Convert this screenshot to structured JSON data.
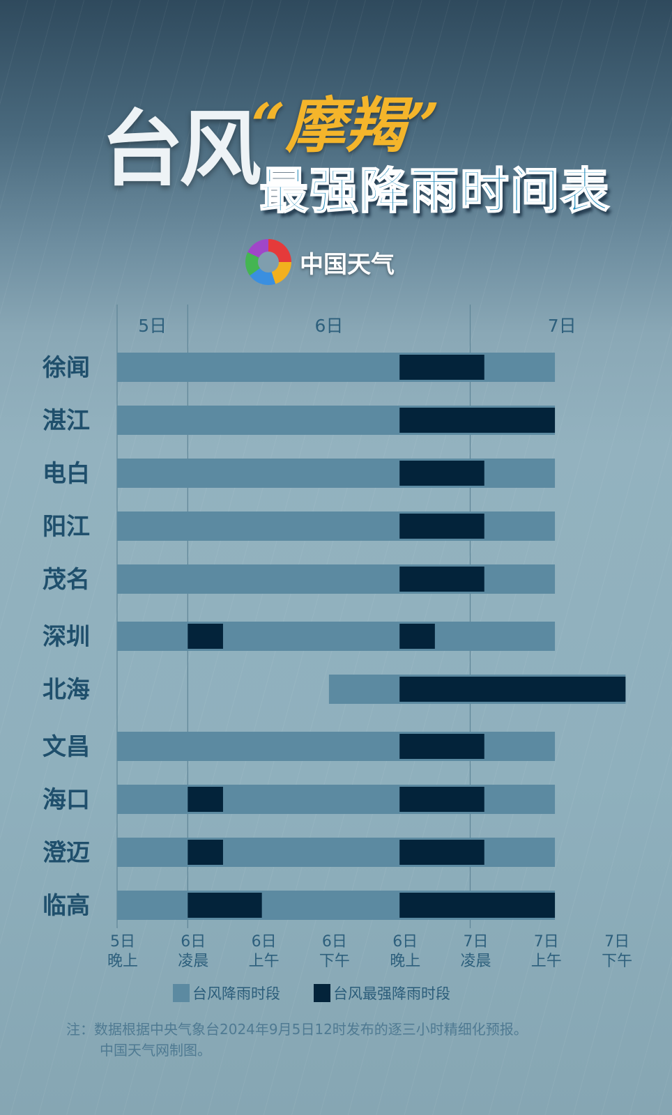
{
  "header": {
    "title_part1": "台风",
    "title_name": "“摩羯”",
    "title_part2": "最强降雨时间表",
    "logo_text": "中国天气"
  },
  "chart_data": {
    "type": "gantt",
    "title": "台风“摩羯”最强降雨时间表",
    "day_labels": [
      {
        "label": "5日",
        "at": 0.5
      },
      {
        "label": "6日",
        "at": 3.0
      },
      {
        "label": "7日",
        "at": 6.3
      }
    ],
    "day_dividers": [
      0,
      1,
      5
    ],
    "ticks": [
      {
        "day": "5日",
        "period": "晚上"
      },
      {
        "day": "6日",
        "period": "凌晨"
      },
      {
        "day": "6日",
        "period": "上午"
      },
      {
        "day": "6日",
        "period": "下午"
      },
      {
        "day": "6日",
        "period": "晚上"
      },
      {
        "day": "7日",
        "period": "凌晨"
      },
      {
        "day": "7日",
        "period": "上午"
      },
      {
        "day": "7日",
        "period": "下午"
      }
    ],
    "x_unit_note": "tick index positions (0 = 5日晚上 … 7 = 7日下午)",
    "xlim": [
      0,
      7.2
    ],
    "series": [
      {
        "name": "台风降雨时段",
        "color": "#5c8aa1"
      },
      {
        "name": "台风最强降雨时段",
        "color": "#03233a"
      }
    ],
    "rows": [
      {
        "city": "徐闻",
        "rain": [
          [
            0,
            6.2
          ]
        ],
        "strongest": [
          [
            4.0,
            5.2
          ]
        ]
      },
      {
        "city": "湛江",
        "rain": [
          [
            0,
            6.2
          ]
        ],
        "strongest": [
          [
            4.0,
            6.2
          ]
        ]
      },
      {
        "city": "电白",
        "rain": [
          [
            0,
            6.2
          ]
        ],
        "strongest": [
          [
            4.0,
            5.2
          ]
        ]
      },
      {
        "city": "阳江",
        "rain": [
          [
            0,
            6.2
          ]
        ],
        "strongest": [
          [
            4.0,
            5.2
          ]
        ]
      },
      {
        "city": "茂名",
        "rain": [
          [
            0,
            6.2
          ]
        ],
        "strongest": [
          [
            4.0,
            5.2
          ]
        ]
      },
      {
        "city": "深圳",
        "rain": [
          [
            0,
            6.2
          ]
        ],
        "strongest": [
          [
            1.0,
            1.5
          ],
          [
            4.0,
            4.5
          ]
        ]
      },
      {
        "city": "北海",
        "rain": [
          [
            3.0,
            7.2
          ]
        ],
        "strongest": [
          [
            4.0,
            7.2
          ]
        ]
      },
      {
        "city": "文昌",
        "rain": [
          [
            0,
            6.2
          ]
        ],
        "strongest": [
          [
            4.0,
            5.2
          ]
        ]
      },
      {
        "city": "海口",
        "rain": [
          [
            0,
            6.2
          ]
        ],
        "strongest": [
          [
            1.0,
            1.5
          ],
          [
            4.0,
            5.2
          ]
        ]
      },
      {
        "city": "澄迈",
        "rain": [
          [
            0,
            6.2
          ]
        ],
        "strongest": [
          [
            1.0,
            1.5
          ],
          [
            4.0,
            5.2
          ]
        ]
      },
      {
        "city": "临高",
        "rain": [
          [
            0,
            6.2
          ]
        ],
        "strongest": [
          [
            1.0,
            2.05
          ],
          [
            4.0,
            6.2
          ]
        ]
      }
    ],
    "legend": [
      "台风降雨时段",
      "台风最强降雨时段"
    ]
  },
  "footer": {
    "note_line1": "注：数据根据中央气象台2024年9月5日12时发布的逐三小时精细化预报。",
    "note_line2": "中国天气网制图。"
  }
}
